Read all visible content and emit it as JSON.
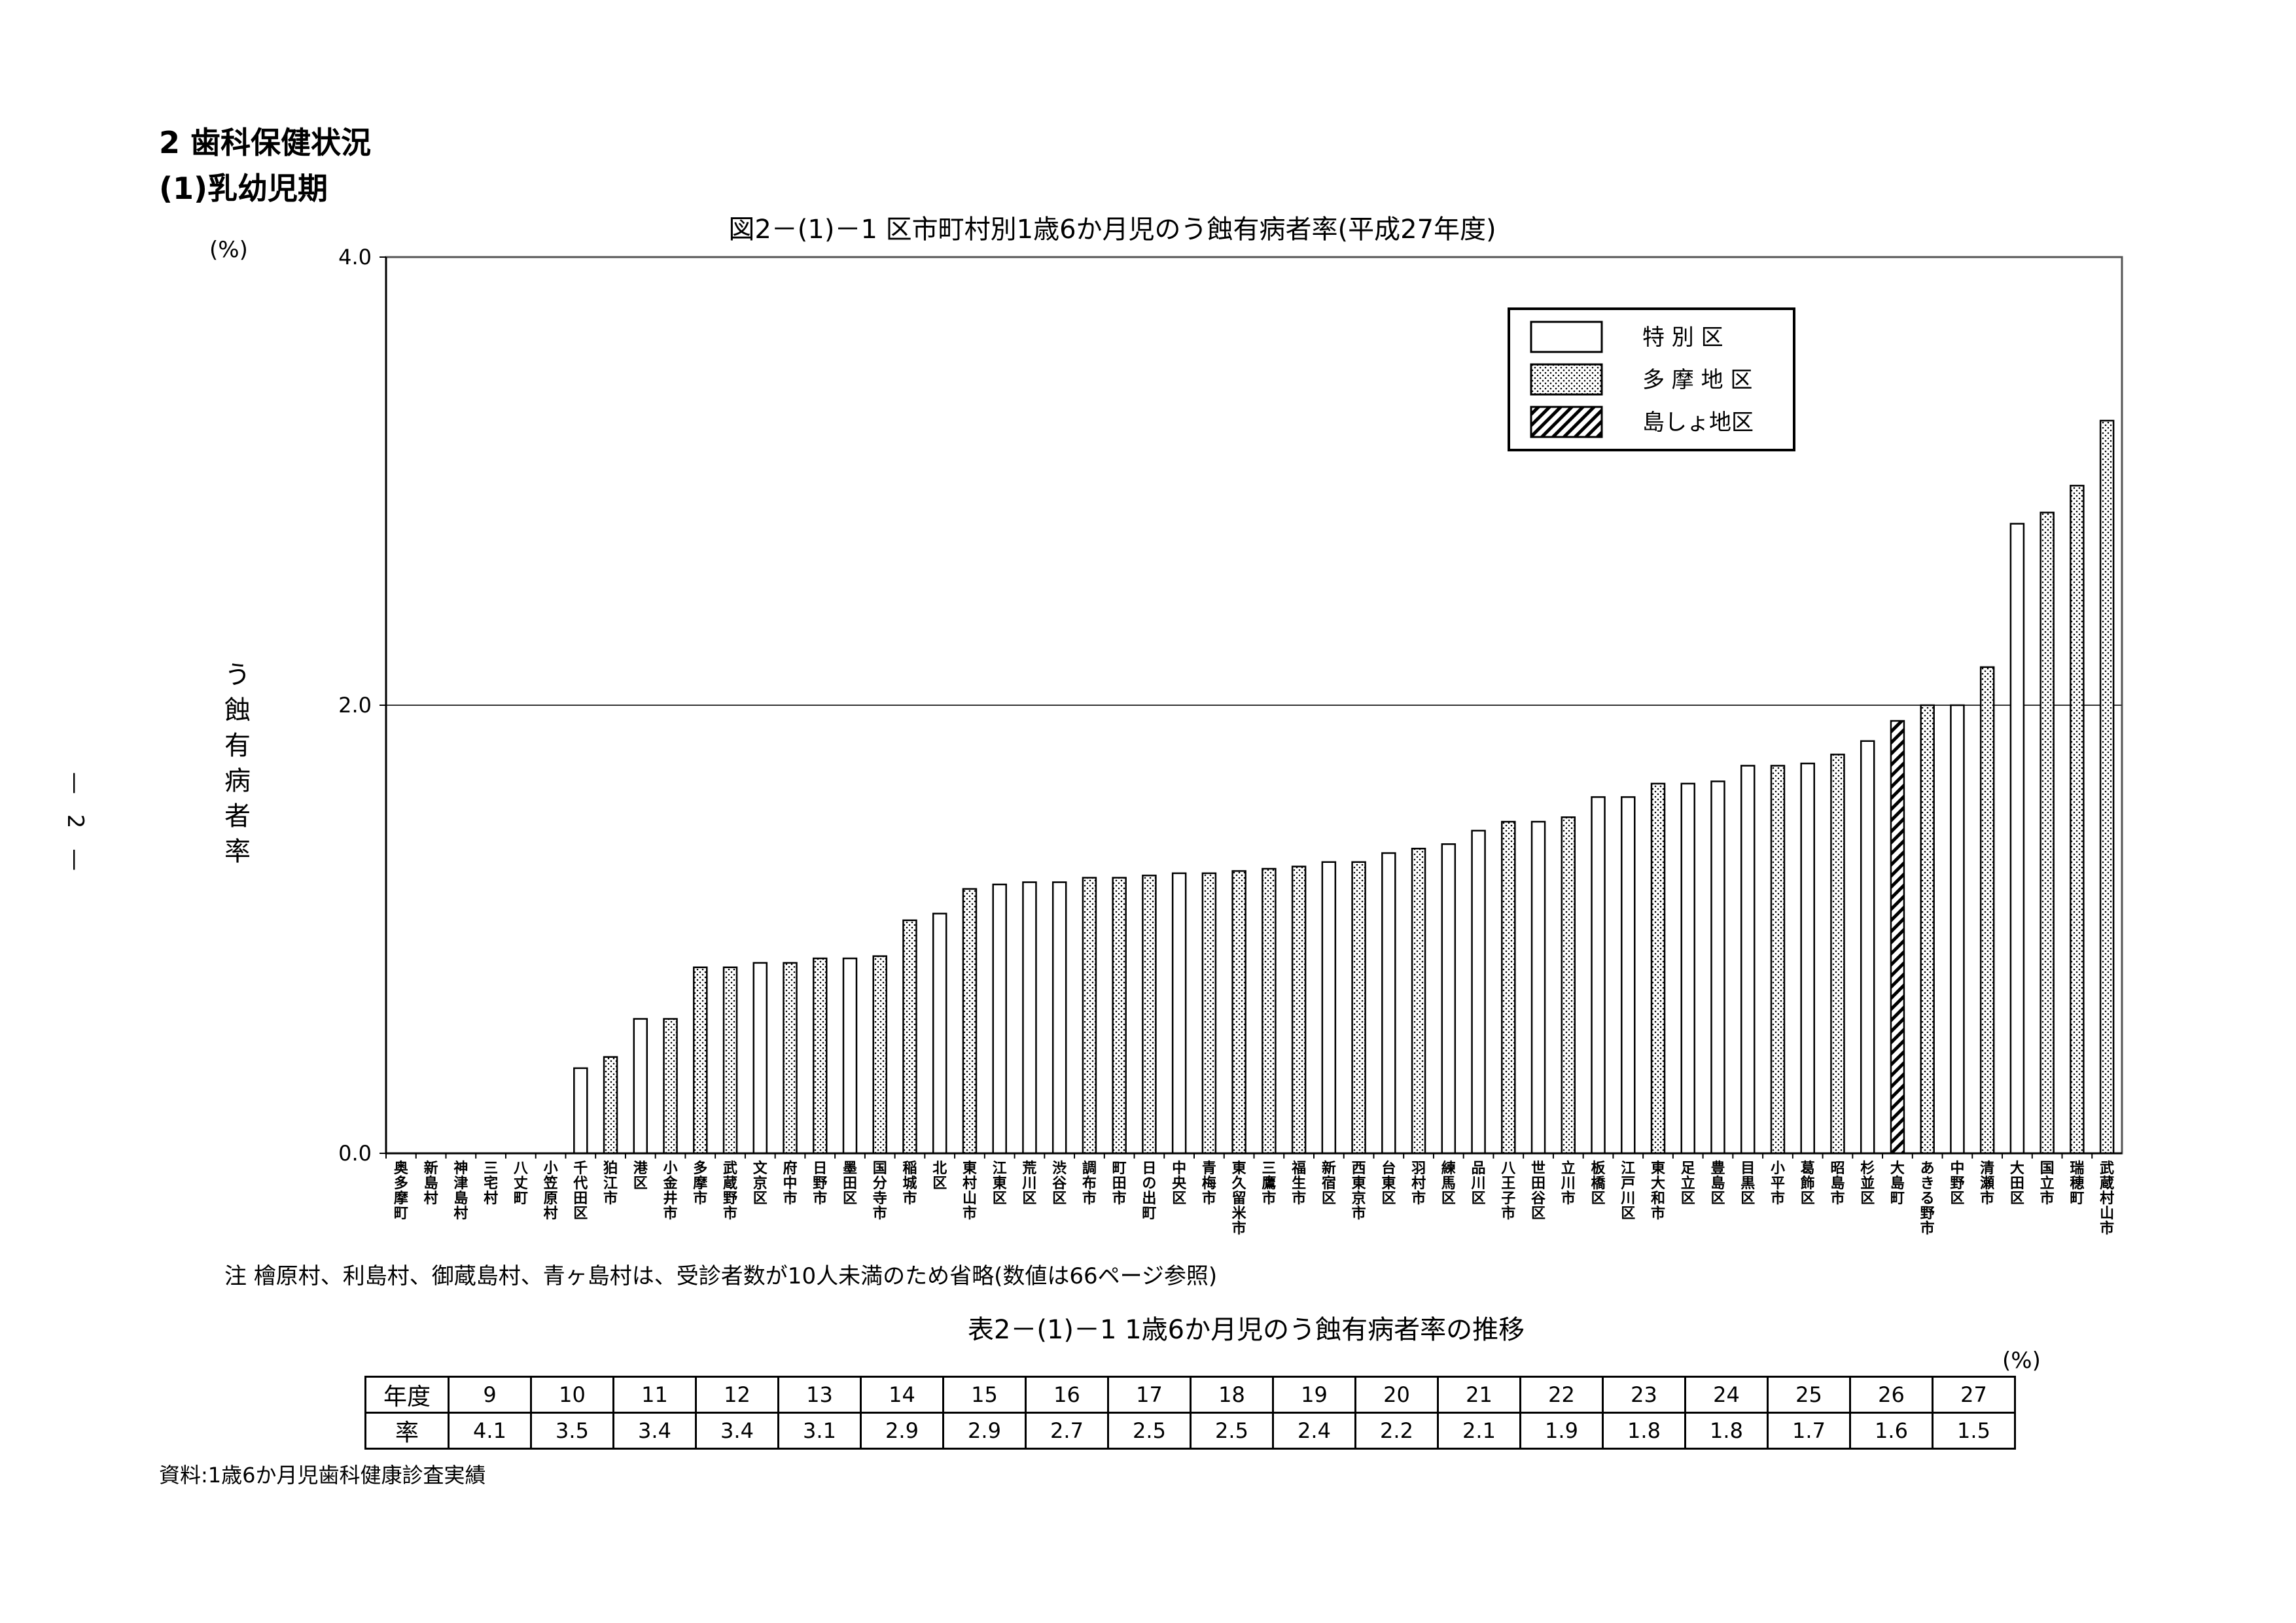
{
  "headings": {
    "section": "2 歯科保健状況",
    "subsection": "(1)乳幼児期"
  },
  "page_number": "— 2 —",
  "figure_title": "図2－(1)－1 区市町村別1歳6か月児のう蝕有病者率(平成27年度)",
  "note": "注 檜原村、利島村、御蔵島村、青ヶ島村は、受診者数が10人未満のため省略(数値は66ページ参照)",
  "table_title": "表2－(1)－1 1歳6か月児のう蝕有病者率の推移",
  "table_unit": "(%)",
  "table": {
    "year_label": "年度",
    "rate_label": "率",
    "years": [
      "9",
      "10",
      "11",
      "12",
      "13",
      "14",
      "15",
      "16",
      "17",
      "18",
      "19",
      "20",
      "21",
      "22",
      "23",
      "24",
      "25",
      "26",
      "27"
    ],
    "rates": [
      "4.1",
      "3.5",
      "3.4",
      "3.4",
      "3.1",
      "2.9",
      "2.9",
      "2.7",
      "2.5",
      "2.5",
      "2.4",
      "2.2",
      "2.1",
      "1.9",
      "1.8",
      "1.8",
      "1.7",
      "1.6",
      "1.5"
    ]
  },
  "source": "資料:1歳6か月児歯科健康診査実績",
  "colors": {
    "axis": "#000000",
    "grid": "#000000",
    "bar_fill": "#ffffff",
    "dot": "#000000"
  },
  "chart_data": {
    "type": "bar",
    "unit_label": "(%)",
    "ylabel": "う蝕有病者率",
    "ylim": [
      0,
      4.0
    ],
    "yticks": [
      "0.0",
      "2.0",
      "4.0"
    ],
    "grid": "horizontal at 2.0",
    "legend_position": "top-right",
    "legend": [
      {
        "name": "特 別 区",
        "pattern": "plain"
      },
      {
        "name": "多 摩 地 区",
        "pattern": "dotted"
      },
      {
        "name": "島しょ地区",
        "pattern": "hatched"
      }
    ],
    "categories": [
      "奥多摩町",
      "新島村",
      "神津島村",
      "三宅村",
      "八丈町",
      "小笠原村",
      "千代田区",
      "狛江市",
      "港区",
      "小金井市",
      "多摩市",
      "武蔵野市",
      "文京区",
      "府中市",
      "日野市",
      "墨田区",
      "国分寺市",
      "稲城市",
      "北区",
      "東村山市",
      "江東区",
      "荒川区",
      "渋谷区",
      "調布市",
      "町田市",
      "日の出町",
      "中央区",
      "青梅市",
      "東久留米市",
      "三鷹市",
      "福生市",
      "新宿区",
      "西東京市",
      "台東区",
      "羽村市",
      "練馬区",
      "品川区",
      "八王子市",
      "世田谷区",
      "立川市",
      "板橋区",
      "江戸川区",
      "東大和市",
      "足立区",
      "豊島区",
      "目黒区",
      "小平市",
      "葛飾区",
      "昭島市",
      "杉並区",
      "大島町",
      "あきる野市",
      "中野区",
      "清瀬市",
      "大田区",
      "国立市",
      "瑞穂町",
      "武蔵村山市"
    ],
    "groups": [
      "島しょ地区",
      "島しょ地区",
      "島しょ地区",
      "島しょ地区",
      "島しょ地区",
      "島しょ地区",
      "特別区",
      "多摩地区",
      "特別区",
      "多摩地区",
      "多摩地区",
      "多摩地区",
      "特別区",
      "多摩地区",
      "多摩地区",
      "特別区",
      "多摩地区",
      "多摩地区",
      "特別区",
      "多摩地区",
      "特別区",
      "特別区",
      "特別区",
      "多摩地区",
      "多摩地区",
      "多摩地区",
      "特別区",
      "多摩地区",
      "多摩地区",
      "多摩地区",
      "多摩地区",
      "特別区",
      "多摩地区",
      "特別区",
      "多摩地区",
      "特別区",
      "特別区",
      "多摩地区",
      "特別区",
      "多摩地区",
      "特別区",
      "特別区",
      "多摩地区",
      "特別区",
      "特別区",
      "特別区",
      "多摩地区",
      "特別区",
      "多摩地区",
      "特別区",
      "島しょ地区",
      "多摩地区",
      "特別区",
      "多摩地区",
      "特別区",
      "多摩地区",
      "多摩地区",
      "多摩地区"
    ],
    "values": [
      0,
      0,
      0,
      0,
      0,
      0,
      0.38,
      0.43,
      0.6,
      0.6,
      0.83,
      0.83,
      0.85,
      0.85,
      0.87,
      0.87,
      0.88,
      1.04,
      1.07,
      1.18,
      1.2,
      1.21,
      1.21,
      1.23,
      1.23,
      1.24,
      1.25,
      1.25,
      1.26,
      1.27,
      1.28,
      1.3,
      1.3,
      1.34,
      1.36,
      1.38,
      1.44,
      1.48,
      1.48,
      1.5,
      1.59,
      1.59,
      1.65,
      1.65,
      1.66,
      1.73,
      1.73,
      1.74,
      1.78,
      1.84,
      1.93,
      2.0,
      2.0,
      2.17,
      2.81,
      2.86,
      2.98,
      3.27
    ]
  }
}
